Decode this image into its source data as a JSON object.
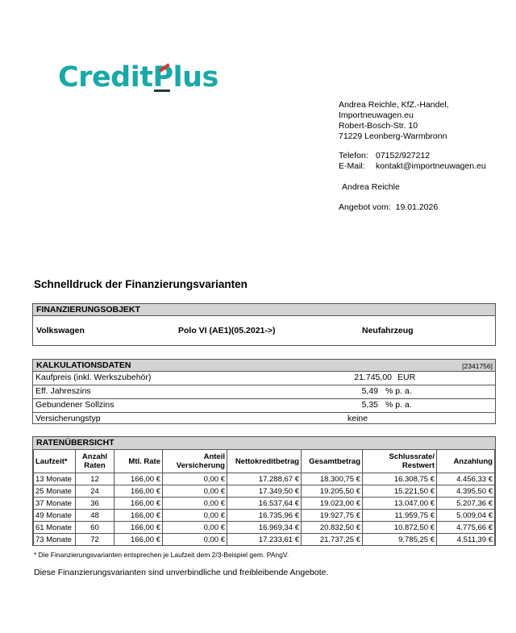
{
  "logo": {
    "text_start": "Credit",
    "text_p": "P",
    "text_end": "lus",
    "brand_color": "#1aa8a8",
    "accent": "#e03030"
  },
  "dealer": {
    "name": "Andrea Reichle, KfZ.-Handel,",
    "web": "Importneuwagen.eu",
    "street": "Robert-Bosch-Str. 10",
    "city": "71229 Leonberg-Warmbronn",
    "phone_label": "Telefon:",
    "phone": "07152/927212",
    "email_label": "E-Mail:",
    "email": "kontakt@importneuwagen.eu",
    "contact": "Andrea Reichle",
    "offer_label": "Angebot vom:",
    "offer_date": "19.01.2026"
  },
  "title": "Schnelldruck der Finanzierungsvarianten",
  "objekt": {
    "header": "FINANZIERUNGSOBJEKT",
    "brand": "Volkswagen",
    "model": "Polo VI (AE1)(05.2021->)",
    "type": "Neufahrzeug"
  },
  "kalkulation": {
    "header": "KALKULATIONSDATEN",
    "id": "[2341756]",
    "rows": [
      {
        "label": "Kaufpreis (inkl. Werkszubehör)",
        "value": "21.745,00",
        "unit": "EUR"
      },
      {
        "label": "Eff. Jahreszins",
        "value": "5,49",
        "unit": "% p. a."
      },
      {
        "label": "Gebundener Sollzins",
        "value": "5,35",
        "unit": "% p. a."
      },
      {
        "label": "Versicherungstyp",
        "value": "keine",
        "unit": ""
      }
    ]
  },
  "raten": {
    "header": "RATENÜBERSICHT",
    "columns": [
      [
        "Laufzeit*",
        ""
      ],
      [
        "Anzahl",
        "Raten"
      ],
      [
        "Mtl. Rate",
        ""
      ],
      [
        "Anteil",
        "Versicherung"
      ],
      [
        "Nettokreditbetrag",
        ""
      ],
      [
        "Gesamtbetrag",
        ""
      ],
      [
        "Schlussrate/",
        "Restwert"
      ],
      [
        "Anzahlung",
        ""
      ]
    ],
    "rows": [
      [
        "13 Monate",
        "12",
        "166,00 €",
        "0,00 €",
        "17.288,67 €",
        "18.300,75 €",
        "16.308,75 €",
        "4.456,33 €"
      ],
      [
        "25 Monate",
        "24",
        "166,00 €",
        "0,00 €",
        "17.349,50 €",
        "19.205,50 €",
        "15.221,50 €",
        "4.395,50 €"
      ],
      [
        "37 Monate",
        "36",
        "166,00 €",
        "0,00 €",
        "16.537,64 €",
        "19.023,00 €",
        "13.047,00 €",
        "5.207,36 €"
      ],
      [
        "49 Monate",
        "48",
        "166,00 €",
        "0,00 €",
        "16.735,96 €",
        "19.927,75 €",
        "11.959,75 €",
        "5.009,04 €"
      ],
      [
        "61 Monate",
        "60",
        "166,00 €",
        "0,00 €",
        "16.969,34 €",
        "20.832,50 €",
        "10.872,50 €",
        "4.775,66 €"
      ],
      [
        "73 Monate",
        "72",
        "166,00 €",
        "0,00 €",
        "17.233,61 €",
        "21.737,25 €",
        "9.785,25 €",
        "4.511,39 €"
      ]
    ]
  },
  "footnote": "* Die Finanzierungsvarianten entsprechen je Laufzeit dem 2/3-Beispiel gem. PAngV.",
  "disclaimer": "Diese Finanzierungsvarianten sind unverbindliche und freibleibende Angebote."
}
